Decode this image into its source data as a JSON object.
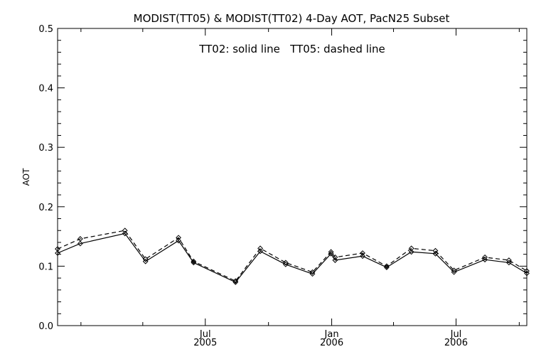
{
  "chart_data": {
    "type": "line",
    "title": "MODIST(TT05) & MODIST(TT02) 4-Day AOT, PacN25 Subset",
    "annotation": "TT02: solid line   TT05: dashed line",
    "ylabel": "AOT",
    "xlabel": "",
    "ylim": [
      0.0,
      0.5
    ],
    "xlim": [
      "2004-11-28",
      "2006-10-12"
    ],
    "y_ticks": [
      "0.0",
      "0.1",
      "0.2",
      "0.3",
      "0.4",
      "0.5"
    ],
    "x_ticks": [
      {
        "date": "2005-07-01",
        "line1": "Jul",
        "line2": "2005"
      },
      {
        "date": "2006-01-01",
        "line1": "Jan",
        "line2": "2006"
      },
      {
        "date": "2006-07-01",
        "line1": "Jul",
        "line2": "2006"
      }
    ],
    "x_minor_tick_dates": [
      "2005-01-01",
      "2005-04-01",
      "2005-10-01",
      "2006-04-01",
      "2006-10-01"
    ],
    "grid": false,
    "series": [
      {
        "name": "TT02",
        "style": "solid",
        "color": "#000000",
        "points": [
          {
            "x": "2004-11-28",
            "y": 0.122
          },
          {
            "x": "2004-12-31",
            "y": 0.138
          },
          {
            "x": "2005-03-06",
            "y": 0.155
          },
          {
            "x": "2005-04-05",
            "y": 0.108
          },
          {
            "x": "2005-05-23",
            "y": 0.143
          },
          {
            "x": "2005-06-14",
            "y": 0.106
          },
          {
            "x": "2005-08-14",
            "y": 0.073
          },
          {
            "x": "2005-09-19",
            "y": 0.125
          },
          {
            "x": "2005-10-26",
            "y": 0.103
          },
          {
            "x": "2005-12-04",
            "y": 0.087
          },
          {
            "x": "2005-12-31",
            "y": 0.121
          },
          {
            "x": "2006-01-06",
            "y": 0.11
          },
          {
            "x": "2006-02-15",
            "y": 0.117
          },
          {
            "x": "2006-03-22",
            "y": 0.098
          },
          {
            "x": "2006-04-27",
            "y": 0.124
          },
          {
            "x": "2006-06-01",
            "y": 0.121
          },
          {
            "x": "2006-06-28",
            "y": 0.09
          },
          {
            "x": "2006-08-12",
            "y": 0.111
          },
          {
            "x": "2006-09-16",
            "y": 0.106
          },
          {
            "x": "2006-10-12",
            "y": 0.088
          }
        ]
      },
      {
        "name": "TT05",
        "style": "dashed",
        "color": "#000000",
        "points": [
          {
            "x": "2004-11-28",
            "y": 0.129
          },
          {
            "x": "2004-12-31",
            "y": 0.146
          },
          {
            "x": "2005-03-06",
            "y": 0.16
          },
          {
            "x": "2005-04-05",
            "y": 0.112
          },
          {
            "x": "2005-05-23",
            "y": 0.148
          },
          {
            "x": "2005-06-14",
            "y": 0.108
          },
          {
            "x": "2005-08-14",
            "y": 0.075
          },
          {
            "x": "2005-09-19",
            "y": 0.13
          },
          {
            "x": "2005-10-26",
            "y": 0.106
          },
          {
            "x": "2005-12-04",
            "y": 0.09
          },
          {
            "x": "2005-12-31",
            "y": 0.124
          },
          {
            "x": "2006-01-06",
            "y": 0.115
          },
          {
            "x": "2006-02-15",
            "y": 0.122
          },
          {
            "x": "2006-03-22",
            "y": 0.1
          },
          {
            "x": "2006-04-27",
            "y": 0.13
          },
          {
            "x": "2006-06-01",
            "y": 0.126
          },
          {
            "x": "2006-06-28",
            "y": 0.093
          },
          {
            "x": "2006-08-12",
            "y": 0.115
          },
          {
            "x": "2006-09-16",
            "y": 0.11
          },
          {
            "x": "2006-10-12",
            "y": 0.092
          }
        ]
      }
    ]
  }
}
